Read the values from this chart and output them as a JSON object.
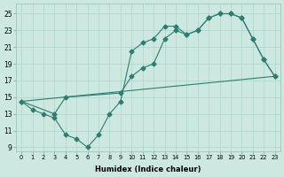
{
  "xlabel": "Humidex (Indice chaleur)",
  "xlim": [
    -0.5,
    23.5
  ],
  "ylim": [
    8.5,
    26.2
  ],
  "xtick_labels": [
    "0",
    "1",
    "2",
    "3",
    "4",
    "5",
    "6",
    "7",
    "8",
    "9",
    "10",
    "11",
    "12",
    "13",
    "14",
    "15",
    "16",
    "17",
    "18",
    "19",
    "20",
    "21",
    "22",
    "23"
  ],
  "ytick_values": [
    9,
    11,
    13,
    15,
    17,
    19,
    21,
    23,
    25
  ],
  "background_color": "#cce8e0",
  "grid_color": "#aad4cc",
  "line_color": "#2e7d72",
  "line1_zigzag": {
    "x": [
      0,
      1,
      2,
      3,
      4,
      5,
      6,
      7,
      8,
      9,
      10,
      11,
      12,
      13,
      14,
      15,
      16,
      17,
      18,
      19,
      20,
      21,
      22,
      23
    ],
    "y": [
      14.5,
      13.5,
      13,
      12.5,
      10.5,
      10,
      9,
      10.5,
      13,
      14.5,
      20.5,
      21.5,
      22,
      23.5,
      23.5,
      22.5,
      23,
      24.5,
      25,
      25,
      24.5,
      22,
      19.5,
      17.5
    ]
  },
  "line2_straight": {
    "x": [
      0,
      23
    ],
    "y": [
      14.5,
      17.5
    ]
  },
  "line3_upper": {
    "x": [
      0,
      3,
      4,
      9,
      10,
      11,
      12,
      13,
      14,
      15,
      16,
      17,
      18,
      19,
      20,
      21,
      22,
      23
    ],
    "y": [
      14.5,
      13,
      15,
      15.5,
      17.5,
      18.5,
      19,
      22,
      23,
      22.5,
      23,
      24.5,
      25,
      25,
      24.5,
      22,
      19.5,
      17.5
    ]
  }
}
